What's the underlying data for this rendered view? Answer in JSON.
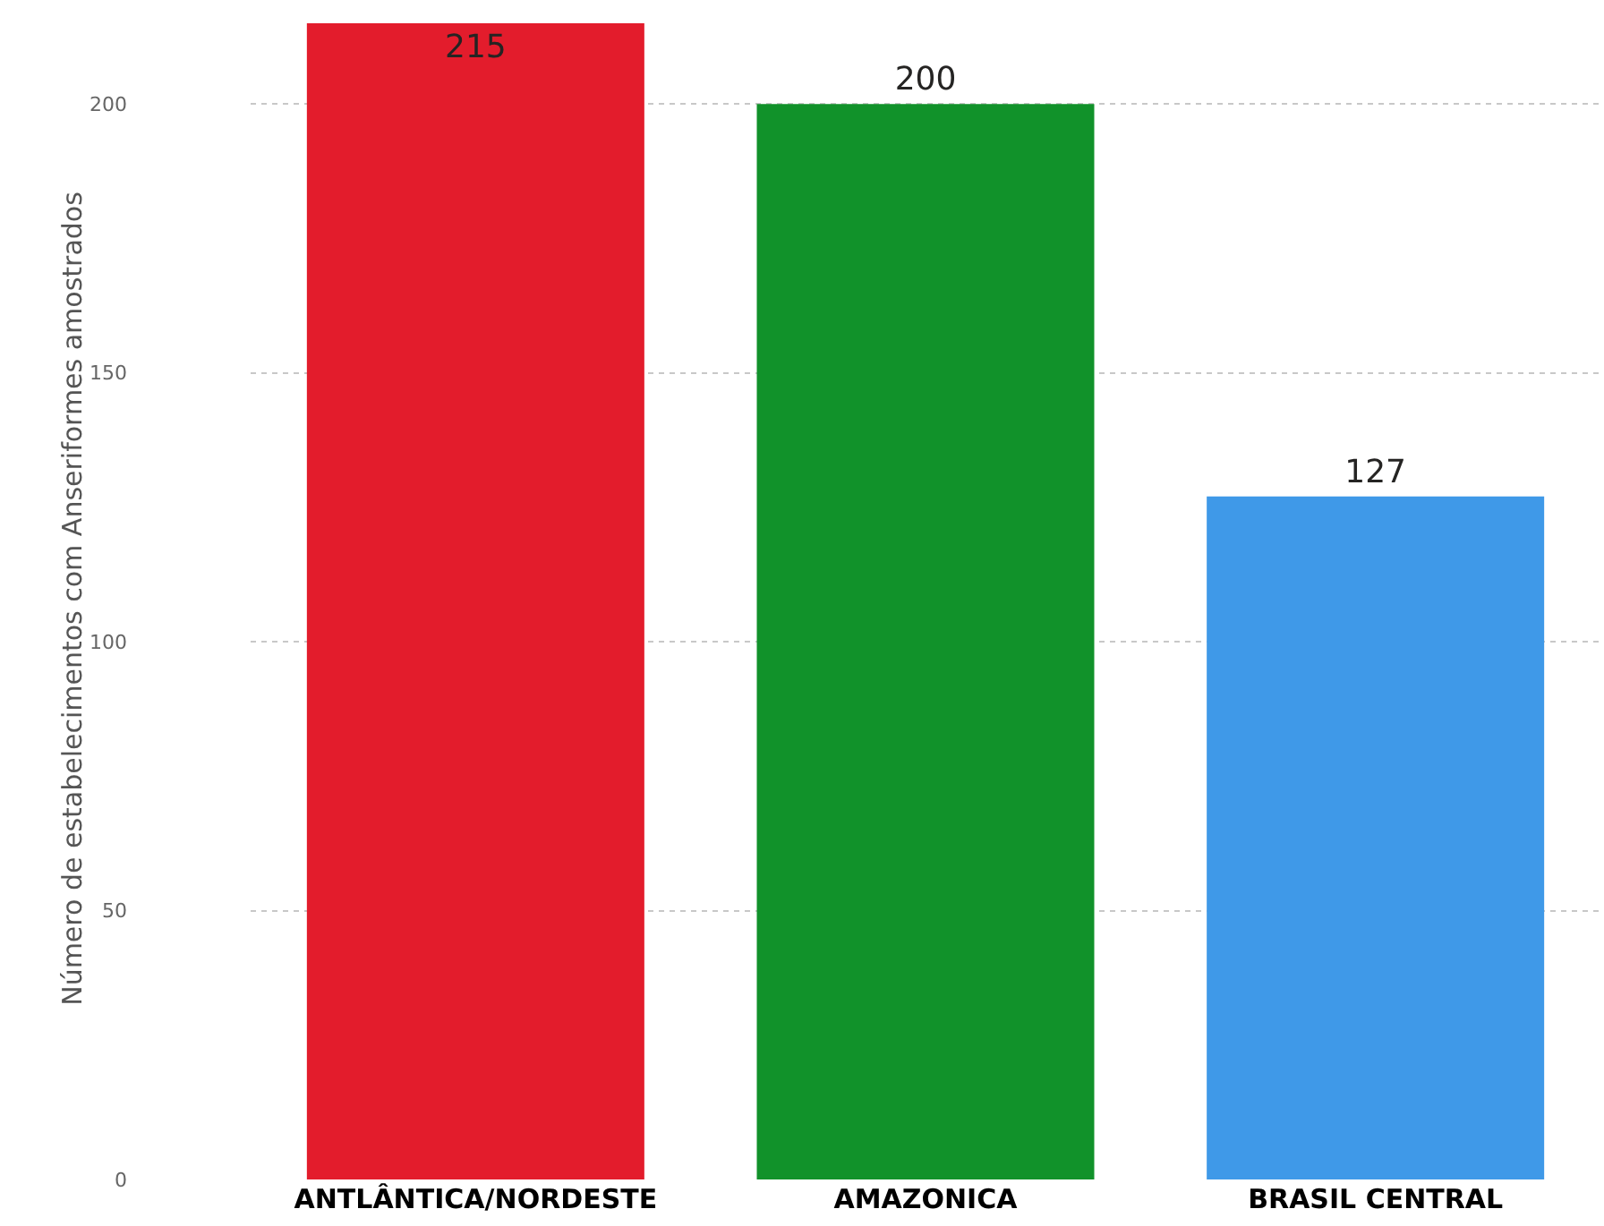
{
  "chart_data": {
    "type": "bar",
    "ylabel": "Número de estabelecimentos com Anseriformes amostrados",
    "categories": [
      "ANTLÂNTICA/NORDESTE",
      "AMAZONICA",
      "BRASIL CENTRAL"
    ],
    "values": [
      215,
      200,
      127
    ],
    "colors": [
      "#e31c2c",
      "#11922a",
      "#3f99e8"
    ],
    "ylim": [
      0,
      216
    ],
    "yticks": [
      0,
      50,
      100,
      150,
      200
    ],
    "grid": "y",
    "data_labels": true
  }
}
